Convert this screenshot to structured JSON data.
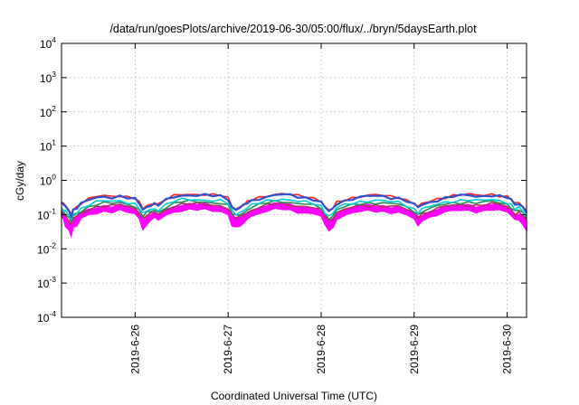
{
  "chart_data": {
    "type": "line",
    "title": "/data/run/goesPlots/archive/2019-06-30/05:00/flux/../bryn/5daysEarth.plot",
    "xlabel": "Coordinated Universal Time (UTC)",
    "ylabel": "cGy/day",
    "y_scale": "log",
    "ylim": [
      0.0001,
      10000
    ],
    "y_ticks": [
      {
        "base": "10",
        "exp": "-4",
        "value": 0.0001
      },
      {
        "base": "10",
        "exp": "-3",
        "value": 0.001
      },
      {
        "base": "10",
        "exp": "-2",
        "value": 0.01
      },
      {
        "base": "10",
        "exp": "-1",
        "value": 0.1
      },
      {
        "base": "10",
        "exp": "0",
        "value": 1
      },
      {
        "base": "10",
        "exp": "1",
        "value": 10
      },
      {
        "base": "10",
        "exp": "2",
        "value": 100
      },
      {
        "base": "10",
        "exp": "3",
        "value": 1000
      },
      {
        "base": "10",
        "exp": "4",
        "value": 10000
      }
    ],
    "xlim": [
      "2019-06-25 05:00",
      "2019-06-30 05:00"
    ],
    "x_ticks": [
      {
        "label": "2019-6-26",
        "value": "2019-06-26 00:00"
      },
      {
        "label": "2019-6-27",
        "value": "2019-06-27 00:00"
      },
      {
        "label": "2019-6-28",
        "value": "2019-06-28 00:00"
      },
      {
        "label": "2019-6-29",
        "value": "2019-06-29 00:00"
      },
      {
        "label": "2019-6-30",
        "value": "2019-06-30 00:00"
      }
    ],
    "grid": true,
    "series": [
      {
        "color": "#ff00ff",
        "style": "band",
        "base_level": 0.13
      },
      {
        "color": "#b03060",
        "style": "line",
        "base_level": 0.17
      },
      {
        "color": "#2e8b57",
        "style": "line",
        "base_level": 0.2
      },
      {
        "color": "#00ced1",
        "style": "line",
        "base_level": 0.23
      },
      {
        "color": "#ff2020",
        "style": "line",
        "base_level": 0.33
      },
      {
        "color": "#3050d0",
        "style": "line",
        "base_level": 0.31
      }
    ],
    "profile": [
      [
        "2019-06-25 05:00",
        0.7
      ],
      [
        "2019-06-25 05:30",
        0.62
      ],
      [
        "2019-06-25 06:00",
        0.55
      ],
      [
        "2019-06-25 07:00",
        0.38
      ],
      [
        "2019-06-25 07:30",
        0.3
      ],
      [
        "2019-06-25 08:00",
        0.45
      ],
      [
        "2019-06-25 09:00",
        0.52
      ],
      [
        "2019-06-25 10:00",
        0.65
      ],
      [
        "2019-06-25 12:00",
        0.85
      ],
      [
        "2019-06-25 14:00",
        1.0
      ],
      [
        "2019-06-25 16:00",
        1.08
      ],
      [
        "2019-06-25 18:00",
        1.05
      ],
      [
        "2019-06-25 20:00",
        1.12
      ],
      [
        "2019-06-25 22:00",
        1.0
      ],
      [
        "2019-06-26 00:00",
        0.9
      ],
      [
        "2019-06-26 01:00",
        0.68
      ],
      [
        "2019-06-26 02:00",
        0.45
      ],
      [
        "2019-06-26 03:00",
        0.55
      ],
      [
        "2019-06-26 04:00",
        0.62
      ],
      [
        "2019-06-26 05:00",
        0.66
      ],
      [
        "2019-06-26 06:00",
        0.6
      ],
      [
        "2019-06-26 08:00",
        0.85
      ],
      [
        "2019-06-26 10:00",
        1.05
      ],
      [
        "2019-06-26 12:00",
        1.18
      ],
      [
        "2019-06-26 14:00",
        1.2
      ],
      [
        "2019-06-26 16:00",
        1.2
      ],
      [
        "2019-06-26 18:00",
        1.18
      ],
      [
        "2019-06-26 20:00",
        1.12
      ],
      [
        "2019-06-26 22:00",
        1.1
      ],
      [
        "2019-06-27 00:00",
        0.9
      ],
      [
        "2019-06-27 01:00",
        0.55
      ],
      [
        "2019-06-27 02:00",
        0.45
      ],
      [
        "2019-06-27 03:00",
        0.52
      ],
      [
        "2019-06-27 04:00",
        0.58
      ],
      [
        "2019-06-27 05:00",
        0.7
      ],
      [
        "2019-06-27 06:00",
        0.8
      ],
      [
        "2019-06-27 08:00",
        0.95
      ],
      [
        "2019-06-27 10:00",
        1.1
      ],
      [
        "2019-06-27 12:00",
        1.2
      ],
      [
        "2019-06-27 14:00",
        1.25
      ],
      [
        "2019-06-27 16:00",
        1.15
      ],
      [
        "2019-06-27 18:00",
        1.05
      ],
      [
        "2019-06-27 20:00",
        1.0
      ],
      [
        "2019-06-27 22:00",
        0.92
      ],
      [
        "2019-06-28 00:00",
        0.78
      ],
      [
        "2019-06-28 01:00",
        0.52
      ],
      [
        "2019-06-28 02:00",
        0.4
      ],
      [
        "2019-06-28 03:00",
        0.45
      ],
      [
        "2019-06-28 04:00",
        0.68
      ],
      [
        "2019-06-28 06:00",
        0.82
      ],
      [
        "2019-06-28 08:00",
        0.95
      ],
      [
        "2019-06-28 10:00",
        1.05
      ],
      [
        "2019-06-28 12:00",
        1.1
      ],
      [
        "2019-06-28 14:00",
        1.12
      ],
      [
        "2019-06-28 16:00",
        1.08
      ],
      [
        "2019-06-28 18:00",
        1.02
      ],
      [
        "2019-06-28 20:00",
        1.0
      ],
      [
        "2019-06-28 22:00",
        0.82
      ],
      [
        "2019-06-29 00:00",
        0.65
      ],
      [
        "2019-06-29 01:00",
        0.5
      ],
      [
        "2019-06-29 02:00",
        0.62
      ],
      [
        "2019-06-29 04:00",
        0.72
      ],
      [
        "2019-06-29 06:00",
        0.88
      ],
      [
        "2019-06-29 08:00",
        1.0
      ],
      [
        "2019-06-29 10:00",
        1.1
      ],
      [
        "2019-06-29 12:00",
        1.15
      ],
      [
        "2019-06-29 14:00",
        1.15
      ],
      [
        "2019-06-29 16:00",
        1.1
      ],
      [
        "2019-06-29 18:00",
        1.12
      ],
      [
        "2019-06-29 20:00",
        1.22
      ],
      [
        "2019-06-29 22:00",
        1.12
      ],
      [
        "2019-06-30 00:00",
        1.0
      ],
      [
        "2019-06-30 01:00",
        0.85
      ],
      [
        "2019-06-30 02:00",
        0.62
      ],
      [
        "2019-06-30 03:00",
        0.68
      ],
      [
        "2019-06-30 04:00",
        0.55
      ],
      [
        "2019-06-30 05:00",
        0.4
      ]
    ]
  }
}
